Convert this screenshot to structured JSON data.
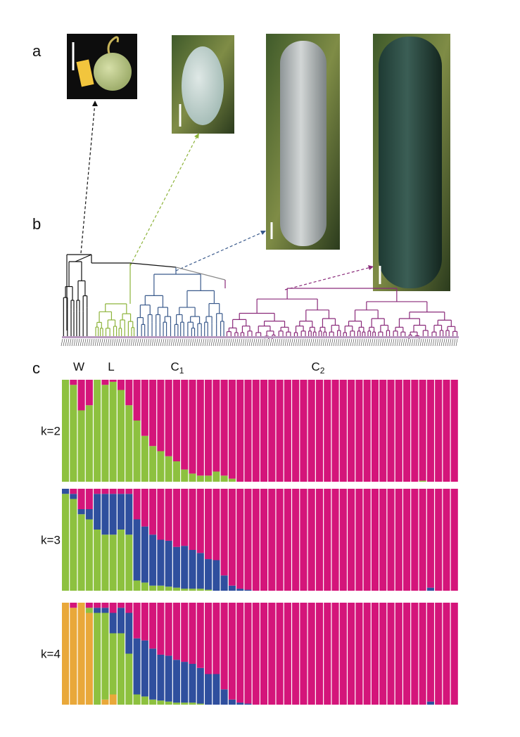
{
  "panel_labels": [
    "a",
    "b",
    "c"
  ],
  "clades": [
    {
      "text": "W"
    },
    {
      "text": "L"
    },
    {
      "text": "C",
      "sub": "1"
    },
    {
      "text": "C",
      "sub": "2"
    }
  ],
  "structure": [
    {
      "label": "k=2",
      "series": [
        {
          "color": "#8dc13f",
          "values": [
            1.0,
            0.95,
            0.7,
            0.75,
            1.0,
            0.95,
            0.98,
            0.9,
            0.75,
            0.6,
            0.45,
            0.35,
            0.3,
            0.25,
            0.2,
            0.12,
            0.08,
            0.06,
            0.06,
            0.1,
            0.06,
            0.03,
            0,
            0,
            0,
            0,
            0,
            0,
            0,
            0,
            0,
            0,
            0,
            0,
            0,
            0,
            0,
            0,
            0,
            0,
            0,
            0,
            0,
            0,
            0,
            0.01,
            0,
            0,
            0,
            0
          ]
        },
        {
          "color": "#d4157a",
          "values": [
            0,
            0.05,
            0.3,
            0.25,
            0,
            0.05,
            0.02,
            0.1,
            0.25,
            0.4,
            0.55,
            0.65,
            0.7,
            0.75,
            0.8,
            0.88,
            0.92,
            0.94,
            0.94,
            0.9,
            0.94,
            0.97,
            1,
            1,
            1,
            1,
            1,
            1,
            1,
            1,
            1,
            1,
            1,
            1,
            1,
            1,
            1,
            1,
            1,
            1,
            1,
            1,
            1,
            1,
            1,
            0.99,
            1,
            1,
            1,
            1
          ]
        }
      ]
    },
    {
      "label": "k=3",
      "series": [
        {
          "color": "#8dc13f",
          "values": [
            0.95,
            0.9,
            0.75,
            0.7,
            0.6,
            0.55,
            0.55,
            0.6,
            0.55,
            0.1,
            0.08,
            0.05,
            0.05,
            0.04,
            0.03,
            0.02,
            0.02,
            0.02,
            0.01,
            0,
            0,
            0,
            0,
            0,
            0,
            0,
            0,
            0,
            0,
            0,
            0,
            0,
            0,
            0,
            0,
            0,
            0,
            0,
            0,
            0,
            0,
            0,
            0,
            0,
            0,
            0,
            0,
            0,
            0,
            0
          ]
        },
        {
          "color": "#2f4f9e",
          "values": [
            0.05,
            0.05,
            0.05,
            0.1,
            0.35,
            0.4,
            0.4,
            0.35,
            0.4,
            0.6,
            0.55,
            0.5,
            0.45,
            0.45,
            0.4,
            0.42,
            0.38,
            0.35,
            0.3,
            0.3,
            0.15,
            0.05,
            0.02,
            0.01,
            0,
            0,
            0,
            0,
            0,
            0,
            0,
            0,
            0,
            0,
            0,
            0,
            0,
            0,
            0,
            0,
            0,
            0,
            0,
            0,
            0,
            0,
            0.03,
            0,
            0,
            0
          ]
        },
        {
          "color": "#d4157a",
          "values": [
            0,
            0.05,
            0.2,
            0.2,
            0.05,
            0.05,
            0.05,
            0.05,
            0.05,
            0.3,
            0.37,
            0.45,
            0.5,
            0.51,
            0.57,
            0.56,
            0.6,
            0.63,
            0.69,
            0.7,
            0.85,
            0.95,
            0.98,
            0.99,
            1,
            1,
            1,
            1,
            1,
            1,
            1,
            1,
            1,
            1,
            1,
            1,
            1,
            1,
            1,
            1,
            1,
            1,
            1,
            1,
            1,
            1,
            0.97,
            1,
            1,
            1
          ]
        }
      ]
    },
    {
      "label": "k=4",
      "series": [
        {
          "color": "#e9a83a",
          "values": [
            1,
            0.95,
            1,
            0.9,
            0,
            0.05,
            0.1,
            0,
            0,
            0,
            0,
            0,
            0,
            0,
            0,
            0,
            0,
            0,
            0,
            0,
            0,
            0,
            0,
            0,
            0,
            0,
            0,
            0,
            0,
            0,
            0,
            0,
            0,
            0,
            0,
            0,
            0,
            0,
            0,
            0,
            0,
            0,
            0,
            0,
            0,
            0,
            0,
            0,
            0,
            0
          ]
        },
        {
          "color": "#8dc13f",
          "values": [
            0,
            0,
            0,
            0.05,
            0.9,
            0.85,
            0.6,
            0.7,
            0.5,
            0.1,
            0.08,
            0.05,
            0.04,
            0.03,
            0.02,
            0.02,
            0.02,
            0.01,
            0,
            0,
            0,
            0,
            0,
            0,
            0,
            0,
            0,
            0,
            0,
            0,
            0,
            0,
            0,
            0,
            0,
            0,
            0,
            0,
            0,
            0,
            0,
            0,
            0,
            0,
            0,
            0,
            0,
            0,
            0,
            0
          ]
        },
        {
          "color": "#2f4f9e",
          "values": [
            0,
            0,
            0,
            0,
            0.05,
            0.05,
            0.2,
            0.25,
            0.4,
            0.55,
            0.55,
            0.5,
            0.45,
            0.45,
            0.42,
            0.4,
            0.38,
            0.35,
            0.3,
            0.3,
            0.15,
            0.05,
            0.02,
            0.01,
            0,
            0,
            0,
            0,
            0,
            0,
            0,
            0,
            0,
            0,
            0,
            0,
            0,
            0,
            0,
            0,
            0,
            0,
            0,
            0,
            0,
            0,
            0.03,
            0,
            0,
            0
          ]
        },
        {
          "color": "#d4157a",
          "values": [
            0,
            0.05,
            0,
            0.05,
            0.05,
            0.05,
            0.1,
            0.05,
            0.1,
            0.35,
            0.37,
            0.45,
            0.51,
            0.52,
            0.56,
            0.58,
            0.6,
            0.64,
            0.7,
            0.7,
            0.85,
            0.95,
            0.98,
            0.99,
            1,
            1,
            1,
            1,
            1,
            1,
            1,
            1,
            1,
            1,
            1,
            1,
            1,
            1,
            1,
            1,
            1,
            1,
            1,
            1,
            1,
            1,
            0.97,
            1,
            1,
            1
          ]
        }
      ]
    }
  ]
}
